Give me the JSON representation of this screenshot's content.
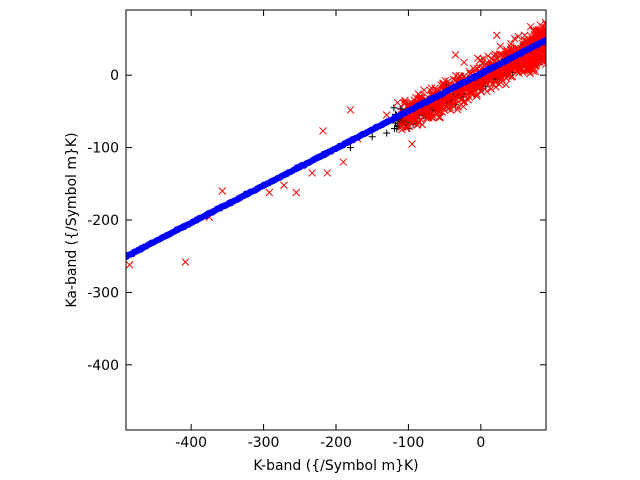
{
  "chart_data": {
    "type": "scatter",
    "xlabel": "K-band ({/Symbol m}K)",
    "ylabel": "Ka-band ({/Symbol m}K)",
    "xlim": [
      -490,
      90
    ],
    "ylim": [
      -490,
      90
    ],
    "x_ticks": [
      -400,
      -300,
      -200,
      -100,
      0
    ],
    "y_ticks": [
      -400,
      -300,
      -200,
      -100,
      0
    ],
    "grid": false,
    "series": [
      {
        "marker": "plus",
        "color": "#000000",
        "line": {
          "slope": 0.515,
          "intercept": -5
        },
        "cluster": {
          "x_range": [
            -120,
            90
          ],
          "spread": 7,
          "count": 520
        },
        "outliers": [
          {
            "x": -180,
            "y": -100
          },
          {
            "x": -150,
            "y": -85
          },
          {
            "x": -130,
            "y": -80
          },
          {
            "x": -120,
            "y": -45
          },
          {
            "x": -95,
            "y": -55
          },
          {
            "x": -85,
            "y": -60
          },
          {
            "x": -285,
            "y": -145
          },
          {
            "x": 70,
            "y": 20
          },
          {
            "x": 80,
            "y": 18
          }
        ]
      },
      {
        "marker": "x",
        "color": "#ff0000",
        "line": {
          "slope": 0.515,
          "intercept": -3
        },
        "cluster": {
          "x_range": [
            -110,
            90
          ],
          "spread": 12,
          "count": 900
        },
        "outliers": [
          {
            "x": -485,
            "y": -262
          },
          {
            "x": -408,
            "y": -258
          },
          {
            "x": -375,
            "y": -196
          },
          {
            "x": -357,
            "y": -160
          },
          {
            "x": -292,
            "y": -162
          },
          {
            "x": -272,
            "y": -152
          },
          {
            "x": -255,
            "y": -162
          },
          {
            "x": -233,
            "y": -135
          },
          {
            "x": -218,
            "y": -77
          },
          {
            "x": -212,
            "y": -135
          },
          {
            "x": -190,
            "y": -120
          },
          {
            "x": -180,
            "y": -48
          },
          {
            "x": -170,
            "y": -88
          },
          {
            "x": -130,
            "y": -55
          },
          {
            "x": -115,
            "y": -38
          },
          {
            "x": -110,
            "y": -65
          },
          {
            "x": -95,
            "y": -95
          },
          {
            "x": -75,
            "y": -45
          },
          {
            "x": -35,
            "y": 28
          },
          {
            "x": 22,
            "y": 55
          },
          {
            "x": 88,
            "y": 58
          }
        ]
      },
      {
        "marker": "circle",
        "color": "#0000ff",
        "line": {
          "slope": 0.515,
          "intercept": 2
        },
        "cluster": {
          "x_range": [
            -490,
            90
          ],
          "spread": 0.6,
          "count": 700
        },
        "outliers": []
      }
    ]
  }
}
